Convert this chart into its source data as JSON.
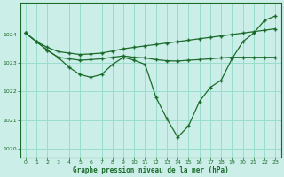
{
  "background_color": "#cceee8",
  "grid_color": "#99ddcc",
  "line_color": "#1a6b2a",
  "xlabel": "Graphe pression niveau de la mer (hPa)",
  "xlim": [
    -0.5,
    23.5
  ],
  "ylim": [
    1019.7,
    1025.1
  ],
  "yticks": [
    1020,
    1021,
    1022,
    1023,
    1024
  ],
  "xticks": [
    0,
    1,
    2,
    3,
    4,
    5,
    6,
    7,
    8,
    9,
    10,
    11,
    12,
    13,
    14,
    15,
    16,
    17,
    18,
    19,
    20,
    21,
    22,
    23
  ],
  "line1_x": [
    0,
    1,
    2,
    3,
    4,
    5,
    6,
    7,
    8,
    9,
    10,
    11,
    12,
    13,
    14,
    15,
    16,
    17,
    18,
    19,
    20,
    21,
    22,
    23
  ],
  "line1_y": [
    1024.05,
    1023.75,
    1023.55,
    1023.4,
    1023.35,
    1023.3,
    1023.32,
    1023.35,
    1023.42,
    1023.5,
    1023.55,
    1023.6,
    1023.65,
    1023.7,
    1023.75,
    1023.8,
    1023.85,
    1023.9,
    1023.95,
    1024.0,
    1024.05,
    1024.1,
    1024.15,
    1024.2
  ],
  "line2_x": [
    0,
    1,
    2,
    3,
    4,
    5,
    6,
    7,
    8,
    9,
    10,
    11,
    12,
    13,
    14,
    15,
    16,
    17,
    18,
    19,
    20,
    21,
    22,
    23
  ],
  "line2_y": [
    1024.05,
    1023.75,
    1023.45,
    1023.2,
    1022.85,
    1022.6,
    1022.5,
    1022.6,
    1022.95,
    1023.2,
    1023.1,
    1022.95,
    1021.8,
    1021.05,
    1020.4,
    1020.8,
    1021.65,
    1022.15,
    1022.4,
    1023.15,
    1023.75,
    1024.05,
    1024.5,
    1024.65
  ],
  "line3_x": [
    0,
    1,
    2,
    3,
    4,
    5,
    6,
    7,
    8,
    9,
    10,
    11,
    12,
    13,
    14,
    15,
    16,
    17,
    18,
    19,
    20,
    21,
    22,
    23
  ],
  "line3_y": [
    1024.05,
    1023.75,
    1023.45,
    1023.2,
    1023.15,
    1023.1,
    1023.12,
    1023.15,
    1023.2,
    1023.25,
    1023.2,
    1023.18,
    1023.12,
    1023.08,
    1023.07,
    1023.1,
    1023.12,
    1023.15,
    1023.18,
    1023.2,
    1023.2,
    1023.2,
    1023.2,
    1023.2
  ]
}
